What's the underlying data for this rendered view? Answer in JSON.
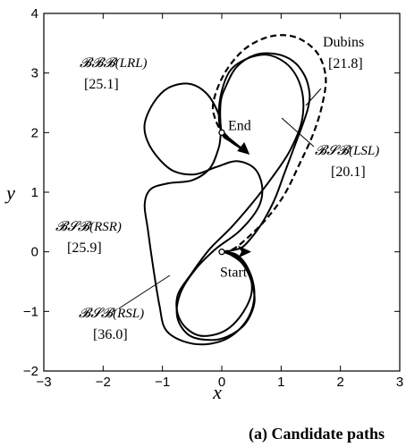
{
  "caption": "(a) Candidate paths",
  "chart_data": {
    "type": "line",
    "xlabel": "x",
    "ylabel": "y",
    "xlim": [
      -3,
      3
    ],
    "ylim": [
      -2,
      4
    ],
    "xticks": [
      -3,
      -2,
      -1,
      0,
      1,
      2,
      3
    ],
    "yticks": [
      -2,
      -1,
      0,
      1,
      2,
      3,
      4
    ],
    "grid": false,
    "legend": "none",
    "markers": [
      {
        "label": "Start",
        "x": 0,
        "y": 0
      },
      {
        "label": "End",
        "x": 0,
        "y": 2
      }
    ],
    "series": [
      {
        "name": "BBB(LRL)",
        "cost": "[25.1]",
        "style": "solid",
        "points": [
          [
            0,
            0
          ],
          [
            0.15,
            -0.05
          ],
          [
            0.35,
            -0.2
          ],
          [
            0.5,
            -0.5
          ],
          [
            0.55,
            -0.85
          ],
          [
            0.4,
            -1.2
          ],
          [
            0.1,
            -1.42
          ],
          [
            -0.2,
            -1.48
          ],
          [
            -0.55,
            -1.4
          ],
          [
            -0.75,
            -1.1
          ],
          [
            -0.7,
            -0.7
          ],
          [
            -0.45,
            -0.3
          ],
          [
            -0.1,
            0.05
          ],
          [
            0.3,
            0.35
          ],
          [
            0.62,
            0.75
          ],
          [
            0.68,
            1.1
          ],
          [
            0.55,
            1.4
          ],
          [
            0.25,
            1.52
          ],
          [
            -0.1,
            1.42
          ],
          [
            -0.45,
            1.3
          ],
          [
            -0.8,
            1.35
          ],
          [
            -1.05,
            1.55
          ],
          [
            -1.25,
            1.85
          ],
          [
            -1.3,
            2.15
          ],
          [
            -1.15,
            2.5
          ],
          [
            -0.9,
            2.75
          ],
          [
            -0.55,
            2.82
          ],
          [
            -0.25,
            2.65
          ],
          [
            -0.05,
            2.3
          ],
          [
            0,
            2.0
          ],
          [
            0.15,
            1.88
          ],
          [
            0.35,
            1.72
          ]
        ]
      },
      {
        "name": "BSB(LSL)",
        "cost": "[20.1]",
        "style": "solid",
        "points": [
          [
            0,
            0
          ],
          [
            0.15,
            0.02
          ],
          [
            0.35,
            0.08
          ],
          [
            0.55,
            0.3
          ],
          [
            0.72,
            0.55
          ],
          [
            0.9,
            0.9
          ],
          [
            1.05,
            1.3
          ],
          [
            1.2,
            1.7
          ],
          [
            1.35,
            2.1
          ],
          [
            1.45,
            2.4
          ],
          [
            1.48,
            2.65
          ],
          [
            1.4,
            2.95
          ],
          [
            1.2,
            3.2
          ],
          [
            0.9,
            3.32
          ],
          [
            0.55,
            3.3
          ],
          [
            0.25,
            3.1
          ],
          [
            0.08,
            2.8
          ],
          [
            -0.02,
            2.5
          ],
          [
            0,
            2.0
          ],
          [
            0.15,
            1.85
          ],
          [
            0.35,
            1.72
          ]
        ]
      },
      {
        "name": "BSB(RSR)",
        "cost": "[25.9]",
        "style": "solid",
        "points": [
          [
            0,
            0
          ],
          [
            0.2,
            -0.05
          ],
          [
            0.45,
            -0.3
          ],
          [
            0.55,
            -0.7
          ],
          [
            0.45,
            -1.1
          ],
          [
            0.15,
            -1.42
          ],
          [
            -0.25,
            -1.55
          ],
          [
            -0.65,
            -1.5
          ],
          [
            -0.95,
            -1.3
          ],
          [
            -1.05,
            -0.9
          ],
          [
            -1.15,
            -0.3
          ],
          [
            -1.25,
            0.4
          ],
          [
            -1.3,
            0.8
          ],
          [
            -1.2,
            1.05
          ],
          [
            -0.9,
            1.15
          ],
          [
            -0.5,
            1.2
          ],
          [
            -0.2,
            1.4
          ],
          [
            -0.05,
            1.75
          ],
          [
            0,
            2.0
          ],
          [
            0.15,
            1.88
          ],
          [
            0.35,
            1.72
          ]
        ]
      },
      {
        "name": "BSB(RSL)",
        "cost": "[36.0]",
        "style": "solid",
        "points": [
          [
            0,
            0
          ],
          [
            0.25,
            -0.05
          ],
          [
            0.45,
            -0.3
          ],
          [
            0.5,
            -0.7
          ],
          [
            0.3,
            -1.1
          ],
          [
            0,
            -1.35
          ],
          [
            -0.4,
            -1.4
          ],
          [
            -0.7,
            -1.15
          ],
          [
            -0.75,
            -0.75
          ],
          [
            -0.5,
            -0.35
          ],
          [
            -0.2,
            0.05
          ],
          [
            0.15,
            0.4
          ],
          [
            0.5,
            0.8
          ],
          [
            0.85,
            1.25
          ],
          [
            1.15,
            1.7
          ],
          [
            1.35,
            2.2
          ],
          [
            1.35,
            2.7
          ],
          [
            1.15,
            3.1
          ],
          [
            0.8,
            3.3
          ],
          [
            0.45,
            3.25
          ],
          [
            0.15,
            3.05
          ],
          [
            0,
            2.7
          ],
          [
            -0.05,
            2.3
          ],
          [
            0,
            2.0
          ],
          [
            0.15,
            1.88
          ],
          [
            0.35,
            1.72
          ]
        ]
      },
      {
        "name": "Dubins",
        "cost": "[21.8]",
        "style": "dashed",
        "points": [
          [
            0,
            0
          ],
          [
            0.2,
            0.05
          ],
          [
            0.45,
            0.25
          ],
          [
            0.75,
            0.55
          ],
          [
            1.05,
            0.95
          ],
          [
            1.3,
            1.45
          ],
          [
            1.55,
            2.0
          ],
          [
            1.7,
            2.5
          ],
          [
            1.75,
            2.95
          ],
          [
            1.6,
            3.35
          ],
          [
            1.25,
            3.6
          ],
          [
            0.85,
            3.62
          ],
          [
            0.45,
            3.45
          ],
          [
            0.15,
            3.15
          ],
          [
            -0.05,
            2.8
          ],
          [
            -0.15,
            2.45
          ],
          [
            -0.1,
            2.2
          ],
          [
            0,
            2.0
          ]
        ]
      }
    ]
  }
}
